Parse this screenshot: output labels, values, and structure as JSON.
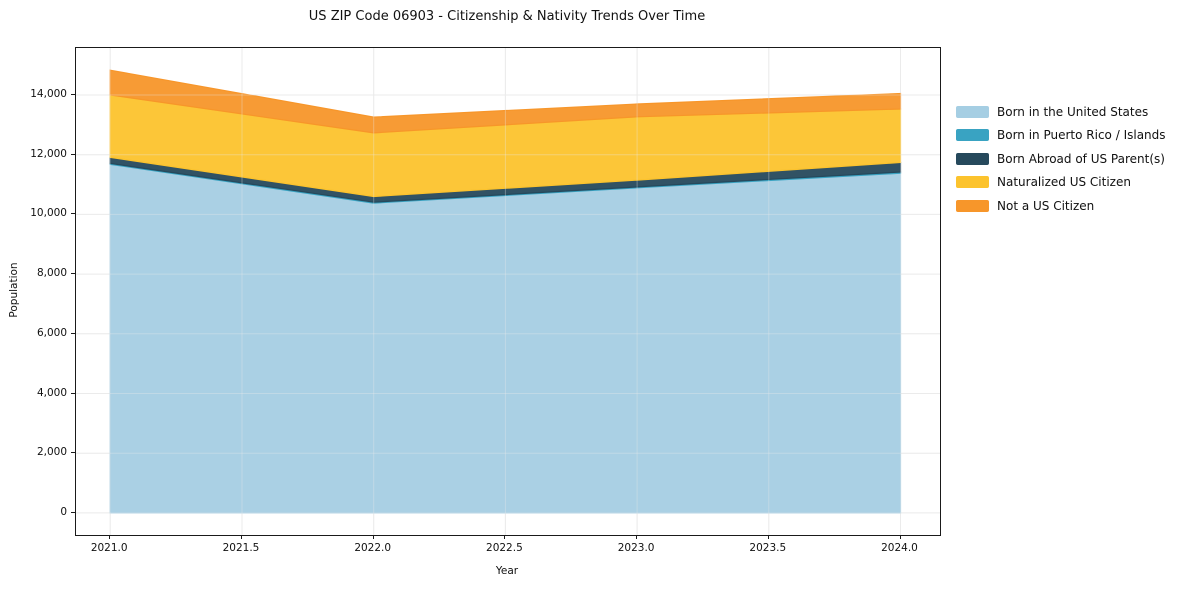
{
  "title": "US ZIP Code 06903 - Citizenship & Nativity Trends Over Time",
  "chart_data": {
    "type": "area",
    "stacked": true,
    "title": "US ZIP Code 06903 - Citizenship & Nativity Trends Over Time",
    "xlabel": "Year",
    "ylabel": "Population",
    "x": [
      2021,
      2022,
      2023,
      2024
    ],
    "series": [
      {
        "name": "Born in the United States",
        "color": "#a5cee3",
        "values": [
          11680,
          10380,
          10890,
          11380
        ]
      },
      {
        "name": "Born in Puerto Rico / Islands",
        "color": "#39a3c2",
        "values": [
          30,
          30,
          30,
          40
        ]
      },
      {
        "name": "Born Abroad of US Parent(s)",
        "color": "#26495c",
        "values": [
          200,
          190,
          230,
          320
        ]
      },
      {
        "name": "Naturalized US Citizen",
        "color": "#fcc32d",
        "values": [
          2090,
          2130,
          2120,
          1790
        ]
      },
      {
        "name": "Not a US Citizen",
        "color": "#f7962a",
        "values": [
          830,
          530,
          430,
          520
        ]
      }
    ],
    "x_ticks": [
      "2021.0",
      "2021.5",
      "2022.0",
      "2022.5",
      "2023.0",
      "2023.5",
      "2024.0"
    ],
    "x_tick_values": [
      2021,
      2021.5,
      2022,
      2022.5,
      2023,
      2023.5,
      2024
    ],
    "y_ticks": [
      "0",
      "2,000",
      "4,000",
      "6,000",
      "8,000",
      "10,000",
      "12,000",
      "14,000"
    ],
    "y_tick_values": [
      0,
      2000,
      4000,
      6000,
      8000,
      10000,
      12000,
      14000
    ],
    "xlim": [
      2020.87,
      2024.15
    ],
    "ylim": [
      -742,
      15575
    ],
    "grid": true,
    "grid_color": "#ebebeb",
    "legend_position": "right-outside",
    "fill_opacity": 0.95
  }
}
